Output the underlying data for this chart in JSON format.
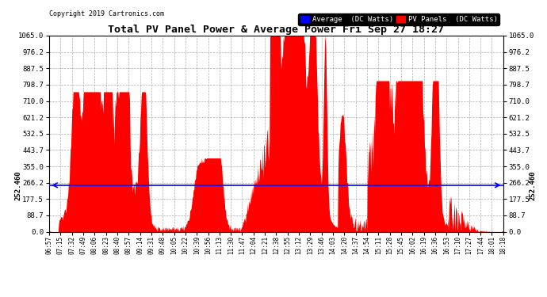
{
  "title": "Total PV Panel Power & Average Power Fri Sep 27 18:27",
  "copyright": "Copyright 2019 Cartronics.com",
  "average_value": 252.46,
  "y_max": 1065.0,
  "y_min": 0.0,
  "yticks": [
    0.0,
    88.7,
    177.5,
    266.2,
    355.0,
    443.7,
    532.5,
    621.2,
    710.0,
    798.7,
    887.5,
    976.2,
    1065.0
  ],
  "fill_color": "#FF0000",
  "avg_line_color": "#0000FF",
  "background_color": "#FFFFFF",
  "grid_color": "#999999",
  "legend_avg_bg": "#0000FF",
  "legend_pv_bg": "#FF0000",
  "xtick_labels": [
    "06:57",
    "07:15",
    "07:32",
    "07:49",
    "08:06",
    "08:23",
    "08:40",
    "08:57",
    "09:14",
    "09:31",
    "09:48",
    "10:05",
    "10:22",
    "10:39",
    "10:56",
    "11:13",
    "11:30",
    "11:47",
    "12:04",
    "12:21",
    "12:38",
    "12:55",
    "13:12",
    "13:29",
    "13:46",
    "14:03",
    "14:20",
    "14:37",
    "14:54",
    "15:11",
    "15:28",
    "15:45",
    "16:02",
    "16:19",
    "16:36",
    "16:53",
    "17:10",
    "17:27",
    "17:44",
    "18:01",
    "18:18"
  ]
}
